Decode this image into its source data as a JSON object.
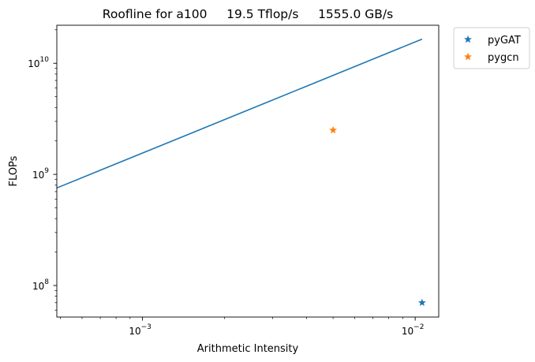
{
  "chart_data": {
    "type": "line",
    "title": "Roofline for a100     19.5 Tflop/s     1555.0 GB/s",
    "xlabel": "Arithmetic Intensity",
    "ylabel": "FLOPs",
    "xscale": "log",
    "yscale": "log",
    "xlim": [
      0.000485,
      0.0122
    ],
    "ylim": [
      52000000,
      22000000000
    ],
    "grid": false,
    "legend_position": "outside-top-right",
    "x_ticks": [
      {
        "value": 0.001,
        "base": "10",
        "exp": "−3"
      },
      {
        "value": 0.01,
        "base": "10",
        "exp": "−2"
      }
    ],
    "y_ticks": [
      {
        "value": 100000000,
        "base": "10",
        "exp": "8"
      },
      {
        "value": 1000000000,
        "base": "10",
        "exp": "9"
      },
      {
        "value": 10000000000,
        "base": "10",
        "exp": "10"
      }
    ],
    "roofline": {
      "color": "#1f77b4",
      "x": [
        0.0003,
        0.0106
      ],
      "y": [
        467000000,
        16500000000
      ]
    },
    "series": [
      {
        "name": "pyGAT",
        "color": "#1f77b4",
        "marker": "star",
        "x": [
          0.0106
        ],
        "y": [
          70000000
        ]
      },
      {
        "name": "pygcn",
        "color": "#ff7f0e",
        "marker": "star",
        "x": [
          0.005
        ],
        "y": [
          2500000000
        ]
      }
    ]
  }
}
